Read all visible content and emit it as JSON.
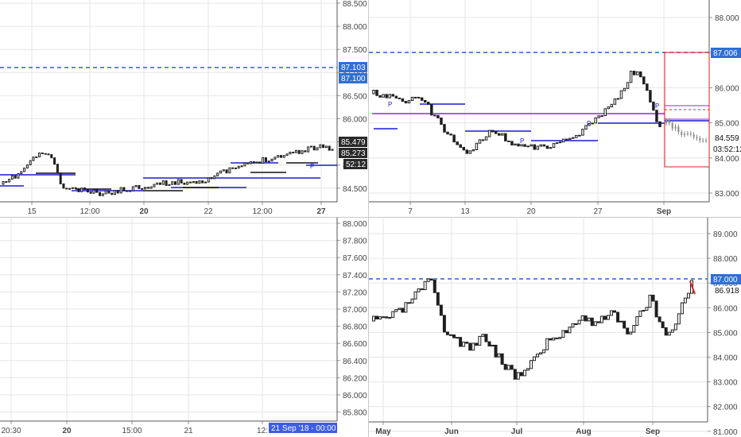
{
  "colors": {
    "grid": "#e6e6e6",
    "axis_text": "#444444",
    "candle": "#1f1f1f",
    "dashed_level": "#2a62c9",
    "level_badge_bg": "#2f6fd6",
    "blue_line": "#1a1ad4",
    "black_line": "#111111",
    "magenta_line": "#a020d0",
    "red_box": "#e02020",
    "price_badge_bg": "#2a2a2a",
    "date_badge_bg": "#3b5de7"
  },
  "panes": [
    {
      "id": "top-left",
      "y_ticks": [
        "88.500",
        "88.000",
        "87.500",
        "87.000",
        "86.500",
        "86.000",
        "85.500",
        "85.000",
        "84.500"
      ],
      "x_ticks": [
        "15",
        "12:00",
        "20",
        "22",
        "12:00",
        "27"
      ],
      "x_bold": [
        false,
        false,
        true,
        false,
        false,
        true
      ],
      "badges": [
        {
          "label": "87.103",
          "kind": "level"
        },
        {
          "label": "87.100",
          "kind": "level"
        },
        {
          "label": "85.479",
          "kind": "price"
        },
        {
          "label": "85.273",
          "kind": "price"
        },
        {
          "label": "52:12",
          "kind": "price"
        }
      ]
    },
    {
      "id": "top-right",
      "y_ticks": [
        "88.000",
        "87.000",
        "86.000",
        "85.000",
        "84.000",
        "83.000"
      ],
      "x_ticks": [
        "7",
        "13",
        "20",
        "27",
        "Sep"
      ],
      "x_bold": [
        false,
        false,
        false,
        false,
        true
      ],
      "badges": [
        {
          "label": "87.006",
          "kind": "level"
        },
        {
          "label": "84.559",
          "kind": "text"
        },
        {
          "label": "03:52:12",
          "kind": "text"
        }
      ]
    },
    {
      "id": "bottom-left",
      "y_ticks": [
        "88.000",
        "87.800",
        "87.600",
        "87.400",
        "87.200",
        "87.000",
        "86.800",
        "86.600",
        "86.400",
        "86.200",
        "86.000",
        "85.800"
      ],
      "x_ticks": [
        "20:30",
        "20",
        "15:00",
        "21",
        "12:"
      ],
      "x_bold": [
        false,
        true,
        false,
        false,
        false
      ],
      "badges": [
        {
          "label": "21 Sep '18 - 00:00",
          "kind": "date"
        }
      ]
    },
    {
      "id": "bottom-right",
      "y_ticks": [
        "89.000",
        "88.000",
        "87.000",
        "86.000",
        "85.000",
        "84.000",
        "83.000",
        "82.000",
        "81.000"
      ],
      "x_ticks": [
        "May",
        "Jun",
        "Jul",
        "Aug",
        "Sep"
      ],
      "x_bold": [
        true,
        true,
        true,
        true,
        true
      ],
      "badges": [
        {
          "label": "87.000",
          "kind": "level"
        },
        {
          "label": "86.918",
          "kind": "text"
        }
      ]
    }
  ]
}
